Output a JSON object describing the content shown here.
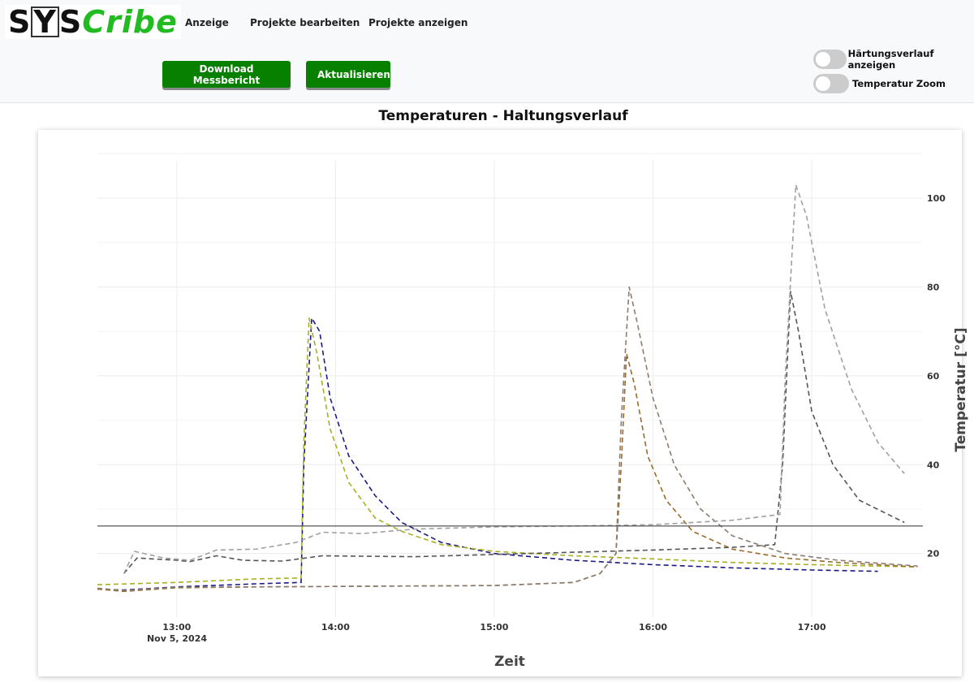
{
  "header": {
    "logo_text": "SYSCribe",
    "nav": [
      {
        "label": "Anzeige"
      },
      {
        "label": "Projekte bearbeiten"
      },
      {
        "label": "Projekte anzeigen"
      }
    ],
    "buttons": {
      "download": "Download Messbericht",
      "refresh": "Aktualisieren"
    },
    "toggles": [
      {
        "label": "Härtungsverlauf anzeigen",
        "on": false
      },
      {
        "label": "Temperatur Zoom",
        "on": false
      }
    ],
    "accent": "#078000"
  },
  "chart_data": {
    "type": "line",
    "title": "Temperaturen - Haltungsverlauf",
    "xlabel": "Zeit",
    "ylabel": "Temperatur [°C]",
    "x_tick_labels": [
      "13:00",
      "14:00",
      "15:00",
      "16:00",
      "17:00"
    ],
    "x_date_label": "Nov 5, 2024",
    "y_tick_labels": [
      "20",
      "40",
      "60",
      "80",
      "100"
    ],
    "y_axis_side": "right",
    "xlim": [
      "12:30",
      "17:42"
    ],
    "ylim": [
      5.7,
      108.4
    ],
    "grid": true,
    "series": [
      {
        "color": "#1a1a80",
        "dash": true,
        "points": [
          [
            "12:30",
            12
          ],
          [
            "12:40",
            11.8
          ],
          [
            "13:00",
            12.5
          ],
          [
            "13:30",
            13.2
          ],
          [
            "13:47",
            13.5
          ],
          [
            "13:48",
            40
          ],
          [
            "13:51",
            73
          ],
          [
            "13:54",
            70
          ],
          [
            "13:58",
            55
          ],
          [
            "14:05",
            42
          ],
          [
            "14:15",
            33
          ],
          [
            "14:25",
            27
          ],
          [
            "14:40",
            22.5
          ],
          [
            "15:00",
            20
          ],
          [
            "15:30",
            18.5
          ],
          [
            "16:00",
            17.5
          ],
          [
            "16:30",
            16.8
          ],
          [
            "17:00",
            16.3
          ],
          [
            "17:25",
            16
          ]
        ]
      },
      {
        "color": "#a8b020",
        "dash": true,
        "points": [
          [
            "12:30",
            13
          ],
          [
            "13:00",
            13.5
          ],
          [
            "13:30",
            14.3
          ],
          [
            "13:47",
            14.5
          ],
          [
            "13:48",
            45
          ],
          [
            "13:50",
            73
          ],
          [
            "13:53",
            65
          ],
          [
            "13:58",
            48
          ],
          [
            "14:05",
            36
          ],
          [
            "14:15",
            28
          ],
          [
            "14:25",
            25
          ],
          [
            "14:40",
            22
          ],
          [
            "15:00",
            20.5
          ],
          [
            "15:30",
            19.5
          ],
          [
            "16:00",
            18.8
          ],
          [
            "16:30",
            18
          ],
          [
            "17:00",
            17.5
          ],
          [
            "17:40",
            17
          ]
        ]
      },
      {
        "color": "#9a6a2a",
        "dash": true,
        "points": [
          [
            "12:30",
            12
          ],
          [
            "12:40",
            11.5
          ],
          [
            "13:00",
            12.3
          ],
          [
            "13:30",
            12.5
          ],
          [
            "14:00",
            12.6
          ],
          [
            "15:00",
            12.8
          ],
          [
            "15:30",
            13.5
          ],
          [
            "15:40",
            15.5
          ],
          [
            "15:46",
            20
          ],
          [
            "15:48",
            40
          ],
          [
            "15:50",
            65
          ],
          [
            "15:53",
            58
          ],
          [
            "15:58",
            42
          ],
          [
            "16:05",
            32
          ],
          [
            "16:15",
            25
          ],
          [
            "16:30",
            21
          ],
          [
            "16:50",
            19
          ],
          [
            "17:10",
            18
          ],
          [
            "17:40",
            17
          ]
        ]
      },
      {
        "color": "#8c7c70",
        "dash": true,
        "points": [
          [
            "12:30",
            12.2
          ],
          [
            "12:40",
            11.7
          ],
          [
            "13:00",
            12.4
          ],
          [
            "14:00",
            12.6
          ],
          [
            "15:00",
            12.8
          ],
          [
            "15:30",
            13.5
          ],
          [
            "15:40",
            15.5
          ],
          [
            "15:46",
            20
          ],
          [
            "15:48",
            50
          ],
          [
            "15:51",
            80
          ],
          [
            "15:54",
            72
          ],
          [
            "16:00",
            55
          ],
          [
            "16:08",
            40
          ],
          [
            "16:18",
            30
          ],
          [
            "16:30",
            24
          ],
          [
            "16:50",
            20
          ],
          [
            "17:10",
            18.5
          ],
          [
            "17:40",
            17.2
          ]
        ]
      },
      {
        "color": "#555555",
        "dash": true,
        "points": [
          [
            "12:40",
            15.5
          ],
          [
            "12:45",
            19
          ],
          [
            "13:00",
            18.5
          ],
          [
            "13:05",
            18.2
          ],
          [
            "13:15",
            19.5
          ],
          [
            "13:25",
            18.5
          ],
          [
            "13:40",
            18.3
          ],
          [
            "13:55",
            19.5
          ],
          [
            "14:30",
            19.3
          ],
          [
            "15:00",
            19.8
          ],
          [
            "15:30",
            20.3
          ],
          [
            "16:00",
            20.8
          ],
          [
            "16:30",
            21.4
          ],
          [
            "16:46",
            22
          ],
          [
            "16:49",
            40
          ],
          [
            "16:52",
            79
          ],
          [
            "16:55",
            70
          ],
          [
            "17:00",
            52
          ],
          [
            "17:08",
            40
          ],
          [
            "17:18",
            32
          ],
          [
            "17:35",
            27
          ]
        ]
      },
      {
        "color": "#a0a0a0",
        "dash": true,
        "points": [
          [
            "12:40",
            15.5
          ],
          [
            "12:44",
            20.5
          ],
          [
            "12:55",
            19
          ],
          [
            "13:05",
            18.5
          ],
          [
            "13:15",
            20.8
          ],
          [
            "13:30",
            21
          ],
          [
            "13:45",
            22.5
          ],
          [
            "13:55",
            24.8
          ],
          [
            "14:10",
            24.5
          ],
          [
            "14:30",
            25.5
          ],
          [
            "15:00",
            26
          ],
          [
            "15:30",
            26.2
          ],
          [
            "16:00",
            26.5
          ],
          [
            "16:30",
            27.5
          ],
          [
            "16:48",
            28.8
          ],
          [
            "16:50",
            60
          ],
          [
            "16:54",
            103
          ],
          [
            "16:58",
            96
          ],
          [
            "17:05",
            75
          ],
          [
            "17:15",
            57
          ],
          [
            "17:25",
            45
          ],
          [
            "17:35",
            38
          ]
        ]
      },
      {
        "color": "#444444",
        "dash": false,
        "points": [
          [
            "12:30",
            26.2
          ],
          [
            "17:42",
            26.2
          ]
        ]
      }
    ]
  }
}
